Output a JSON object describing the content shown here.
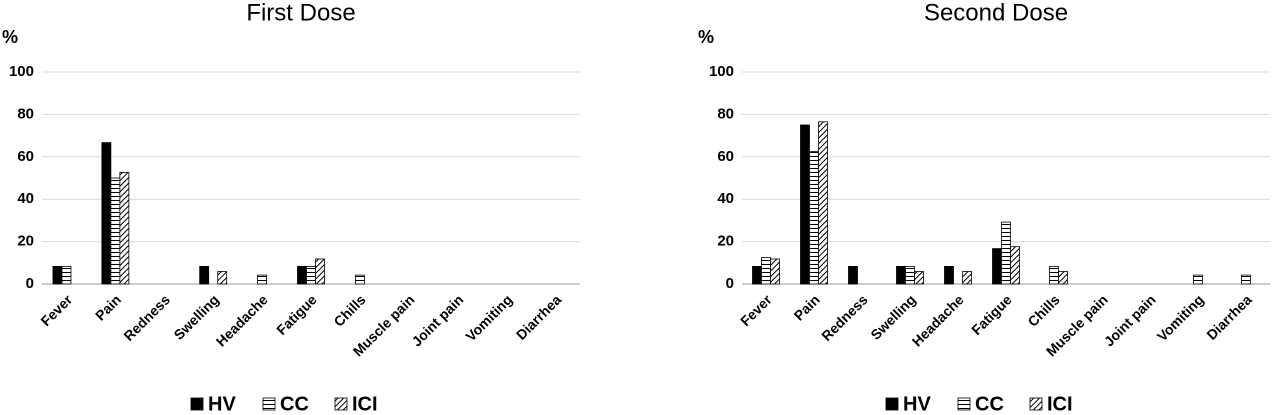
{
  "chart_data": [
    {
      "type": "bar",
      "title": "First Dose",
      "y_label": "%",
      "categories": [
        "Fever",
        "Pain",
        "Redness",
        "Swelling",
        "Headache",
        "Fatigue",
        "Chills",
        "Muscle pain",
        "Joint pain",
        "Vomiting",
        "Diarrhea"
      ],
      "series": [
        {
          "name": "HV",
          "color": "#000000",
          "pattern": "solid",
          "values": [
            8.3,
            66.7,
            0,
            8.3,
            0,
            8.3,
            0,
            0,
            0,
            0,
            0
          ]
        },
        {
          "name": "CC",
          "color": "#000000",
          "pattern": "horizontal",
          "values": [
            8.3,
            50,
            0,
            0,
            4.2,
            8.3,
            4.2,
            0,
            0,
            0,
            0
          ]
        },
        {
          "name": "ICI",
          "color": "#000000",
          "pattern": "diagonal",
          "values": [
            0,
            52.6,
            0,
            5.9,
            0,
            11.8,
            0,
            0,
            0,
            0,
            0
          ]
        }
      ],
      "ylim": [
        0,
        100
      ],
      "yticks": [
        0,
        20,
        40,
        60,
        80,
        100
      ],
      "grid": true,
      "legend": "bottom"
    },
    {
      "type": "bar",
      "title": "Second Dose",
      "y_label": "%",
      "categories": [
        "Fever",
        "Pain",
        "Redness",
        "Swelling",
        "Headache",
        "Fatigue",
        "Chills",
        "Muscle pain",
        "Joint pain",
        "Vomiting",
        "Diarrhea"
      ],
      "series": [
        {
          "name": "HV",
          "color": "#000000",
          "pattern": "solid",
          "values": [
            8.3,
            75,
            8.3,
            8.3,
            8.3,
            16.7,
            0,
            0,
            0,
            0,
            0
          ]
        },
        {
          "name": "CC",
          "color": "#000000",
          "pattern": "horizontal",
          "values": [
            12.5,
            62.5,
            0,
            8.3,
            0,
            29.2,
            8.3,
            0,
            0,
            4.2,
            4.2
          ]
        },
        {
          "name": "ICI",
          "color": "#000000",
          "pattern": "diagonal",
          "values": [
            11.8,
            76.5,
            0,
            5.9,
            5.9,
            17.6,
            5.9,
            0,
            0,
            0,
            0
          ]
        }
      ],
      "ylim": [
        0,
        100
      ],
      "yticks": [
        0,
        20,
        40,
        60,
        80,
        100
      ],
      "grid": true,
      "legend": "bottom"
    }
  ]
}
